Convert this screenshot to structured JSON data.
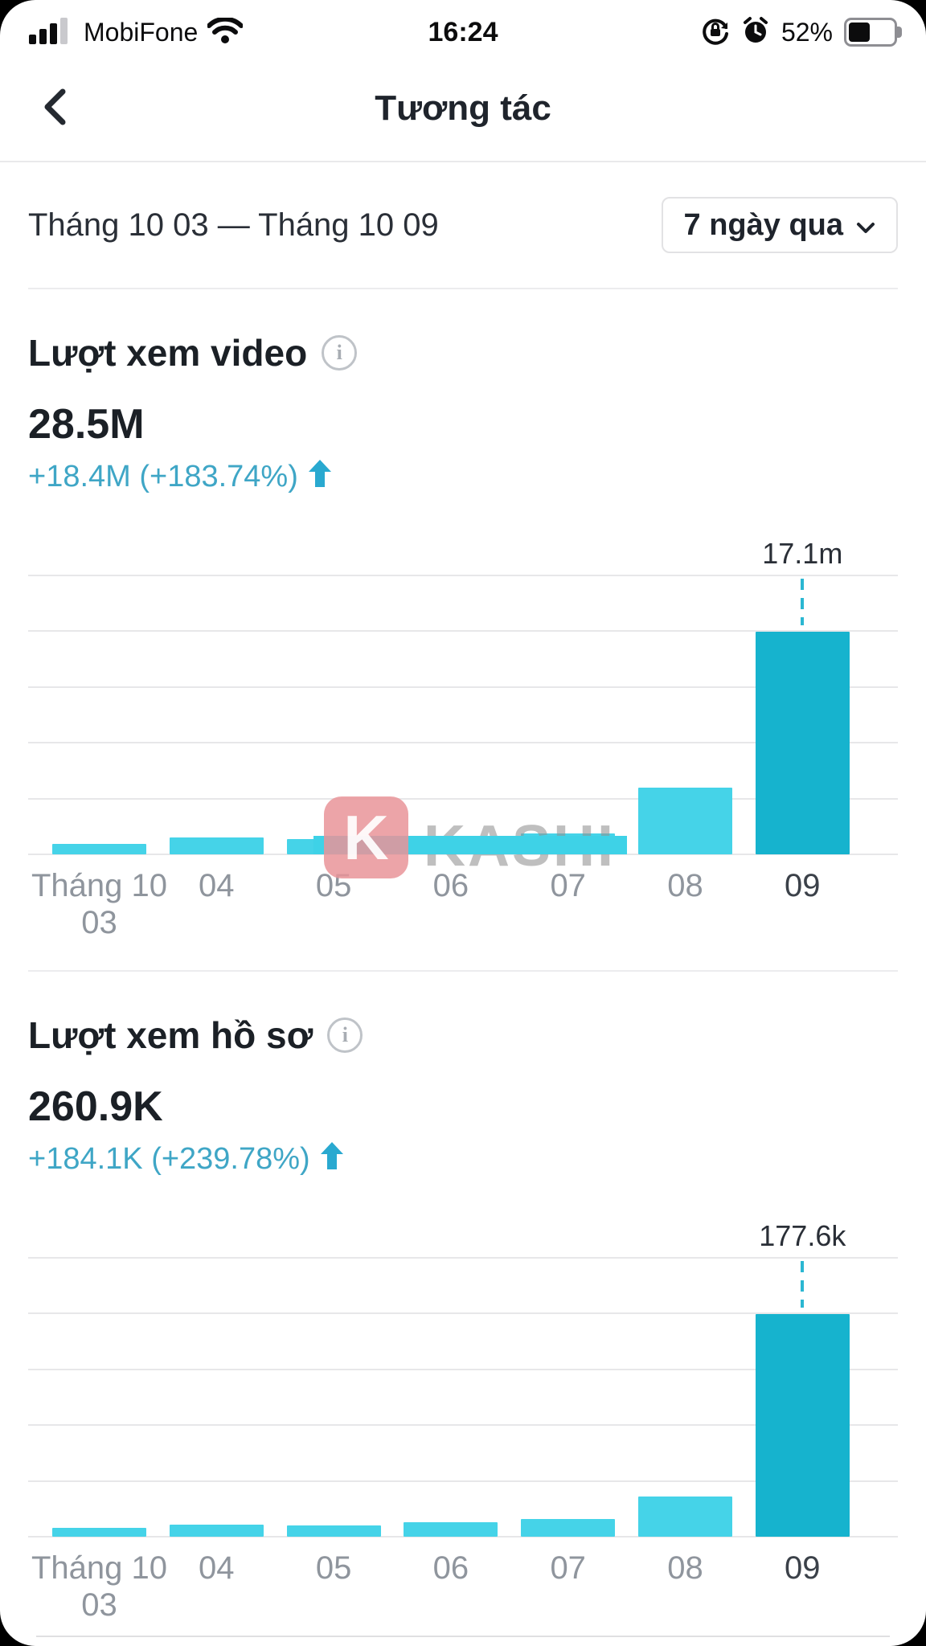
{
  "status_bar": {
    "carrier": "MobiFone",
    "time": "16:24",
    "battery_percent": "52%"
  },
  "header": {
    "title": "Tương tác"
  },
  "filter": {
    "date_range": "Tháng 10 03 — Tháng 10 09",
    "period_selector": "7 ngày qua"
  },
  "sections": [
    {
      "title": "Lượt xem video",
      "total": "28.5M",
      "change": "+18.4M (+183.74%)"
    },
    {
      "title": "Lượt xem hồ sơ",
      "total": "260.9K",
      "change": "+184.1K (+239.78%)"
    }
  ],
  "watermark": {
    "letter": "K",
    "text": "KASHI"
  },
  "colors": {
    "bar_light": "#45d3e8",
    "bar_dark": "#16b3ce",
    "change_text": "#3fa6c6",
    "arrow": "#29a9d0",
    "dash": "#2bb7d2"
  },
  "chart_data": [
    {
      "type": "bar",
      "title": "Lượt xem video",
      "categories": [
        "Tháng 10\n03",
        "04",
        "05",
        "06",
        "07",
        "08",
        "09"
      ],
      "values": [
        800000,
        1300000,
        1200000,
        1400000,
        1600000,
        5100000,
        17100000
      ],
      "peak_label": "17.1m",
      "peak_index": 6,
      "highlight_index": 6,
      "ylim": [
        0,
        21400000
      ],
      "grid": true,
      "legend": "none"
    },
    {
      "type": "bar",
      "title": "Lượt xem hồ sơ",
      "categories": [
        "Tháng 10\n03",
        "04",
        "05",
        "06",
        "07",
        "08",
        "09"
      ],
      "values": [
        7000,
        9600,
        8900,
        11500,
        14000,
        32300,
        177600
      ],
      "peak_label": "177.6k",
      "peak_index": 6,
      "highlight_index": 6,
      "ylim": [
        0,
        222000
      ],
      "grid": true,
      "legend": "none"
    }
  ]
}
